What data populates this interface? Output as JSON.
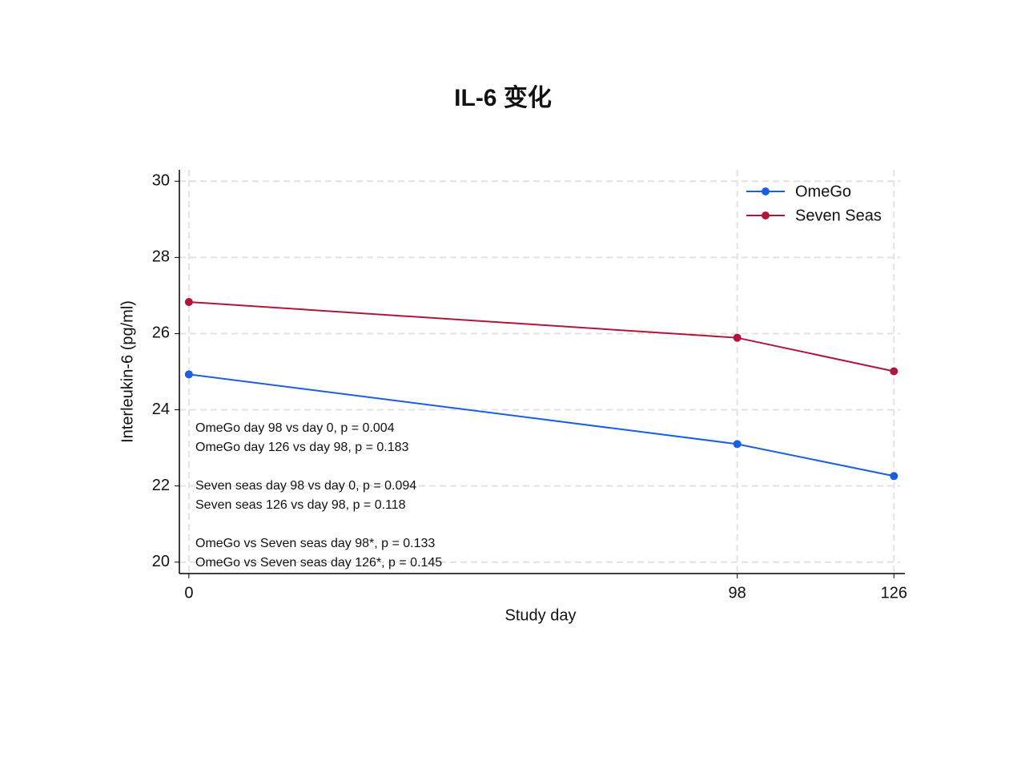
{
  "chart_data": {
    "type": "line",
    "title": "IL-6 变化",
    "x_label": "Study day",
    "y_label": "Interleukin-6 (pg/ml)",
    "x": [
      0,
      98,
      126
    ],
    "series": [
      {
        "name": "OmeGo",
        "color": "#1a5fe0",
        "values": [
          24.93,
          23.1,
          22.26
        ]
      },
      {
        "name": "Seven Seas",
        "color": "#b0163c",
        "values": [
          26.83,
          25.89,
          25.01
        ]
      }
    ],
    "xlim": [
      -1.7,
      127.1
    ],
    "ylim": [
      19.7,
      30.3
    ],
    "xticks": [
      0,
      98,
      126
    ],
    "yticks": [
      20,
      22,
      24,
      26,
      28,
      30
    ],
    "grid": true,
    "legend": "upper right",
    "annotations": [
      "OmeGo day 98 vs day 0, p = 0.004",
      "OmeGo day 126 vs day 98, p = 0.183",
      "Seven seas day 98 vs day 0, p = 0.094",
      "Seven seas 126 vs day 98, p = 0.118",
      "OmeGo vs Seven seas day 98*, p = 0.133",
      "OmeGo vs Seven seas day 126*, p = 0.145"
    ]
  }
}
